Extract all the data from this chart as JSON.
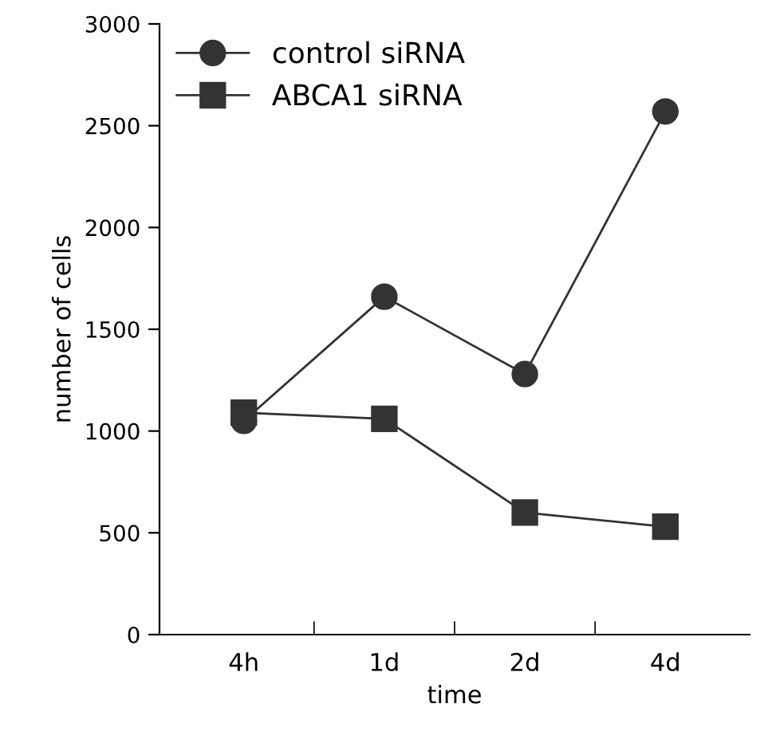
{
  "chart_data": {
    "type": "line",
    "xlabel": "time",
    "ylabel": "number of cells",
    "categories": [
      "4h",
      "1d",
      "2d",
      "4d"
    ],
    "series": [
      {
        "name": "control siRNA",
        "color": "#333333",
        "marker": "circle",
        "values": [
          1050,
          1660,
          1280,
          2570
        ]
      },
      {
        "name": "ABCA1 siRNA",
        "color": "#333333",
        "marker": "square",
        "values": [
          1090,
          1060,
          600,
          530
        ]
      }
    ],
    "ylim": [
      0,
      3000
    ],
    "yticks": [
      0,
      500,
      1000,
      1500,
      2000,
      2500,
      3000
    ],
    "grid": false,
    "legend": "top left",
    "line_style": "solid"
  }
}
